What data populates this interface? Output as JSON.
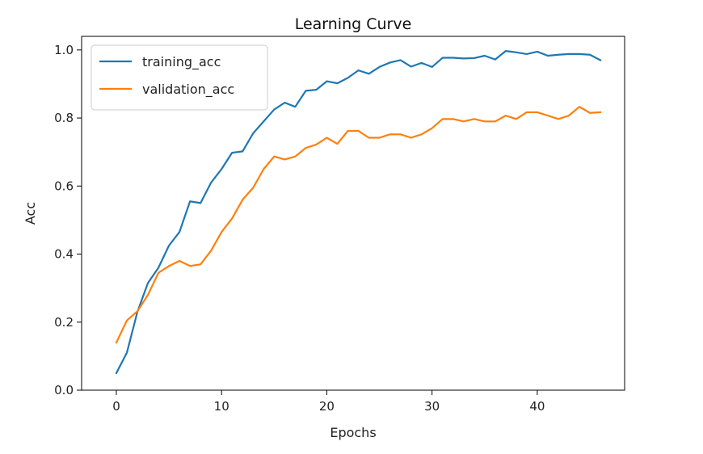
{
  "chart_data": {
    "type": "line",
    "title": "Learning Curve",
    "xlabel": "Epochs",
    "ylabel": "Acc",
    "xlim": [
      -3.3,
      48.3
    ],
    "ylim": [
      0.0,
      1.04
    ],
    "xticks": [
      0,
      10,
      20,
      30,
      40
    ],
    "yticks": [
      0.0,
      0.2,
      0.4,
      0.6,
      0.8,
      1.0
    ],
    "xtick_labels": [
      "0",
      "10",
      "20",
      "30",
      "40"
    ],
    "ytick_labels": [
      "0.0",
      "0.2",
      "0.4",
      "0.6",
      "0.8",
      "1.0"
    ],
    "grid": false,
    "legend_position": "top-left",
    "x": [
      0,
      1,
      2,
      3,
      4,
      5,
      6,
      7,
      8,
      9,
      10,
      11,
      12,
      13,
      14,
      15,
      16,
      17,
      18,
      19,
      20,
      21,
      22,
      23,
      24,
      25,
      26,
      27,
      28,
      29,
      30,
      31,
      32,
      33,
      34,
      35,
      36,
      37,
      38,
      39,
      40,
      41,
      42,
      43,
      44,
      45,
      46
    ],
    "series": [
      {
        "name": "training_acc",
        "color": "#1f77b4",
        "values": [
          0.05,
          0.11,
          0.23,
          0.315,
          0.36,
          0.425,
          0.465,
          0.555,
          0.55,
          0.61,
          0.65,
          0.698,
          0.702,
          0.755,
          0.79,
          0.825,
          0.845,
          0.833,
          0.88,
          0.883,
          0.908,
          0.902,
          0.918,
          0.94,
          0.93,
          0.95,
          0.963,
          0.97,
          0.951,
          0.962,
          0.95,
          0.977,
          0.977,
          0.975,
          0.976,
          0.983,
          0.972,
          0.997,
          0.993,
          0.988,
          0.995,
          0.983,
          0.986,
          0.988,
          0.988,
          0.986,
          0.97
        ]
      },
      {
        "name": "validation_acc",
        "color": "#ff7f0e",
        "values": [
          0.14,
          0.205,
          0.232,
          0.28,
          0.345,
          0.365,
          0.38,
          0.365,
          0.37,
          0.41,
          0.465,
          0.505,
          0.56,
          0.595,
          0.65,
          0.687,
          0.678,
          0.687,
          0.712,
          0.722,
          0.742,
          0.724,
          0.762,
          0.762,
          0.742,
          0.742,
          0.752,
          0.752,
          0.742,
          0.752,
          0.77,
          0.797,
          0.797,
          0.79,
          0.797,
          0.79,
          0.79,
          0.807,
          0.797,
          0.817,
          0.817,
          0.807,
          0.797,
          0.807,
          0.833,
          0.815,
          0.817
        ]
      }
    ]
  }
}
